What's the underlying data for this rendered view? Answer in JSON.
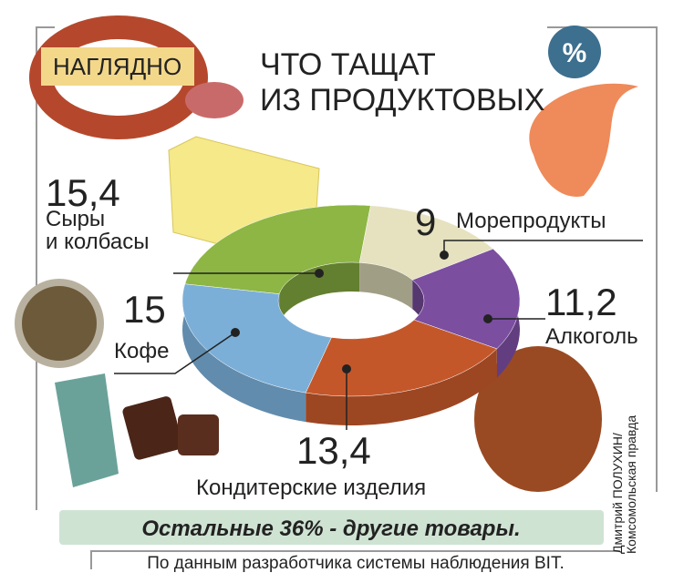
{
  "chart_data": {
    "type": "donut",
    "badge": "НАГЛЯДНО",
    "title": "ЧТО ТАЩАТ\nИЗ ПРОДУКТОВЫХ",
    "symbol": "%",
    "categories": [
      "Сыры\nи колбасы",
      "Морепродукты",
      "Алкоголь",
      "Кондитерские изделия",
      "Кофе"
    ],
    "values": [
      15.4,
      9,
      11.2,
      13.4,
      15
    ],
    "value_labels": [
      "15,4",
      "9",
      "11,2",
      "13,4",
      "15"
    ],
    "colors": [
      "#8db644",
      "#e6e1bf",
      "#7b4ea0",
      "#c4572a",
      "#7bafd8"
    ],
    "note": "Остальные 36% - другие товары.",
    "source": "По данным разработчика системы наблюдения BIT.",
    "credit": "Дмитрий ПОЛУХИН/\nКомсомольская правда"
  }
}
